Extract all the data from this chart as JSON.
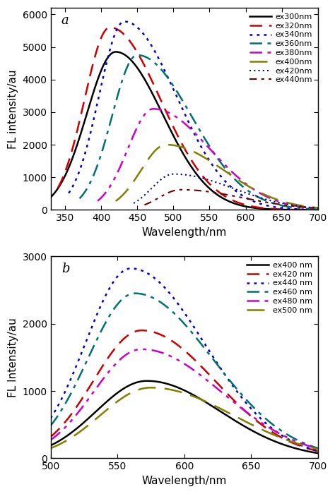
{
  "panel_a": {
    "title": "a",
    "xlabel": "Wavelength/nm",
    "ylabel": "FL intensity/au",
    "xlim": [
      330,
      700
    ],
    "ylim": [
      0,
      6200
    ],
    "yticks": [
      0,
      1000,
      2000,
      3000,
      4000,
      5000,
      6000
    ],
    "xticks": [
      350,
      400,
      450,
      500,
      550,
      600,
      650,
      700
    ],
    "series": [
      {
        "label": "ex300nm",
        "color": "#000000",
        "linestyle": "solid",
        "lw": 1.8,
        "peak_x": 420,
        "peak_y": 4850,
        "sigma_l": 40,
        "sigma_r": 65,
        "x0": 330
      },
      {
        "label": "ex320nm",
        "color": "#CC0000",
        "linestyle": "dashed",
        "lw": 1.8,
        "peak_x": 412,
        "peak_y": 5600,
        "sigma_l": 35,
        "sigma_r": 70,
        "x0": 340
      },
      {
        "label": "ex340nm",
        "color": "#0000CC",
        "linestyle": "dotted",
        "lw": 1.8,
        "peak_x": 432,
        "peak_y": 5780,
        "sigma_l": 35,
        "sigma_r": 72,
        "x0": 355
      },
      {
        "label": "ex360nm",
        "color": "#007070",
        "linestyle": "dashdot",
        "lw": 1.8,
        "peak_x": 450,
        "peak_y": 4750,
        "sigma_l": 35,
        "sigma_r": 75,
        "x0": 370
      },
      {
        "label": "ex380nm",
        "color": "#CC00CC",
        "linestyle": "dashdotdot",
        "lw": 1.8,
        "peak_x": 472,
        "peak_y": 3100,
        "sigma_l": 35,
        "sigma_r": 78,
        "x0": 395
      },
      {
        "label": "ex400nm",
        "color": "#808000",
        "linestyle": "loosedash",
        "lw": 1.8,
        "peak_x": 490,
        "peak_y": 2000,
        "sigma_l": 35,
        "sigma_r": 80,
        "x0": 420
      },
      {
        "label": "ex420nm",
        "color": "#000080",
        "linestyle": "densedot",
        "lw": 1.5,
        "peak_x": 500,
        "peak_y": 1100,
        "sigma_l": 30,
        "sigma_r": 82,
        "x0": 445
      },
      {
        "label": "ex440nm",
        "color": "#660000",
        "linestyle": "dashdot2",
        "lw": 1.5,
        "peak_x": 510,
        "peak_y": 620,
        "sigma_l": 30,
        "sigma_r": 85,
        "x0": 460
      }
    ]
  },
  "panel_b": {
    "title": "b",
    "xlabel": "Wavelength/nm",
    "ylabel": "FL Intensity/au",
    "xlim": [
      500,
      700
    ],
    "ylim": [
      0,
      3000
    ],
    "yticks": [
      0,
      1000,
      2000,
      3000
    ],
    "xticks": [
      500,
      550,
      600,
      650,
      700
    ],
    "series": [
      {
        "label": "ex400 nm",
        "color": "#000000",
        "linestyle": "solid",
        "lw": 1.8,
        "peak_x": 572,
        "peak_y": 1150,
        "sigma_l": 38,
        "sigma_r": 55,
        "x0": 500
      },
      {
        "label": "ex420 nm",
        "color": "#CC0000",
        "linestyle": "dashed",
        "lw": 1.8,
        "peak_x": 568,
        "peak_y": 1900,
        "sigma_l": 36,
        "sigma_r": 55,
        "x0": 500
      },
      {
        "label": "ex440 nm",
        "color": "#0000CC",
        "linestyle": "dotted",
        "lw": 1.8,
        "peak_x": 560,
        "peak_y": 2820,
        "sigma_l": 34,
        "sigma_r": 55,
        "x0": 500
      },
      {
        "label": "ex460 nm",
        "color": "#007070",
        "linestyle": "dashdot",
        "lw": 1.8,
        "peak_x": 563,
        "peak_y": 2450,
        "sigma_l": 35,
        "sigma_r": 58,
        "x0": 500
      },
      {
        "label": "ex480 nm",
        "color": "#CC00CC",
        "linestyle": "dashdotdot",
        "lw": 1.8,
        "peak_x": 568,
        "peak_y": 1620,
        "sigma_l": 36,
        "sigma_r": 60,
        "x0": 500
      },
      {
        "label": "ex500 nm",
        "color": "#808000",
        "linestyle": "loosedash",
        "lw": 1.8,
        "peak_x": 575,
        "peak_y": 1050,
        "sigma_l": 38,
        "sigma_r": 62,
        "x0": 500
      }
    ]
  }
}
